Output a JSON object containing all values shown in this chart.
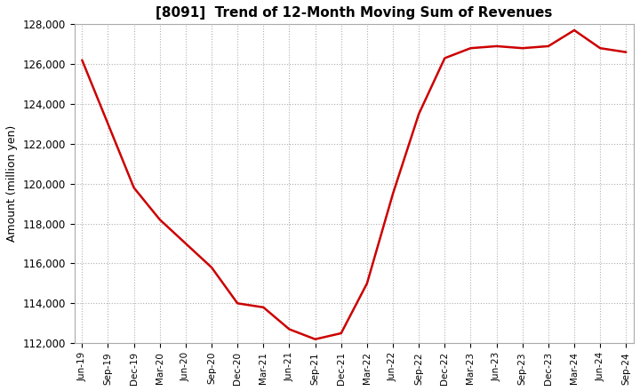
{
  "title": "[8091]  Trend of 12-Month Moving Sum of Revenues",
  "ylabel": "Amount (million yen)",
  "line_color": "#cc0000",
  "background_color": "#ffffff",
  "grid_color": "#b0b0b0",
  "ylim": [
    112000,
    128000
  ],
  "yticks": [
    112000,
    114000,
    116000,
    118000,
    120000,
    122000,
    124000,
    126000,
    128000
  ],
  "x_labels": [
    "Jun-19",
    "Sep-19",
    "Dec-19",
    "Mar-20",
    "Jun-20",
    "Sep-20",
    "Dec-20",
    "Mar-21",
    "Jun-21",
    "Sep-21",
    "Dec-21",
    "Mar-22",
    "Jun-22",
    "Sep-22",
    "Dec-22",
    "Mar-23",
    "Jun-23",
    "Sep-23",
    "Dec-23",
    "Mar-24",
    "Jun-24",
    "Sep-24"
  ],
  "values": [
    126200,
    123000,
    119800,
    118200,
    117000,
    115800,
    114000,
    113800,
    112700,
    112200,
    112500,
    115000,
    119500,
    123500,
    126300,
    126800,
    126900,
    126800,
    126900,
    127700,
    126800,
    126600
  ],
  "title_fontsize": 11,
  "ylabel_fontsize": 9,
  "tick_fontsize": 8.5,
  "xtick_fontsize": 7.5,
  "line_width": 1.8
}
